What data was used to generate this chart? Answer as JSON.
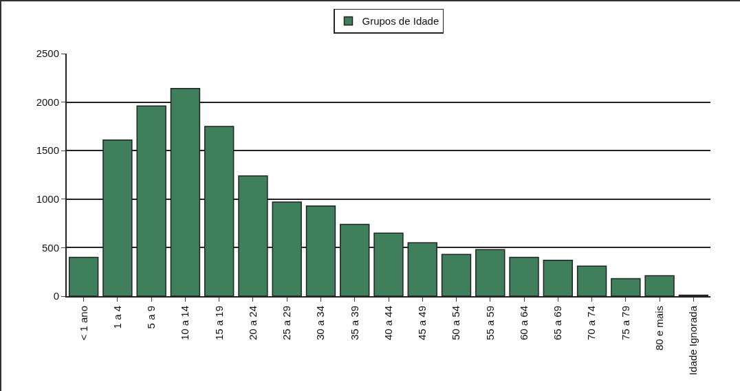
{
  "chart_data": {
    "type": "bar",
    "categories": [
      "< 1 ano",
      "1 a 4",
      "5 a 9",
      "10 a 14",
      "15 a 19",
      "20 a 24",
      "25 a 29",
      "30 a 34",
      "35 a 39",
      "40 a 44",
      "45 a 49",
      "50 a 54",
      "55 a 59",
      "60 a 64",
      "65 a 69",
      "70 a 74",
      "75 a 79",
      "80 e mais",
      "Idade Ignorada"
    ],
    "series": [
      {
        "name": "Grupos de Idade",
        "color": "#3f7f5c",
        "values": [
          400,
          1610,
          1960,
          2140,
          1750,
          1240,
          970,
          930,
          740,
          650,
          550,
          430,
          480,
          400,
          370,
          310,
          180,
          210,
          10
        ]
      }
    ],
    "ylim": [
      0,
      2500
    ],
    "yticks": [
      0,
      500,
      1000,
      1500,
      2000,
      2500
    ],
    "grid": "y",
    "legend": "top"
  }
}
